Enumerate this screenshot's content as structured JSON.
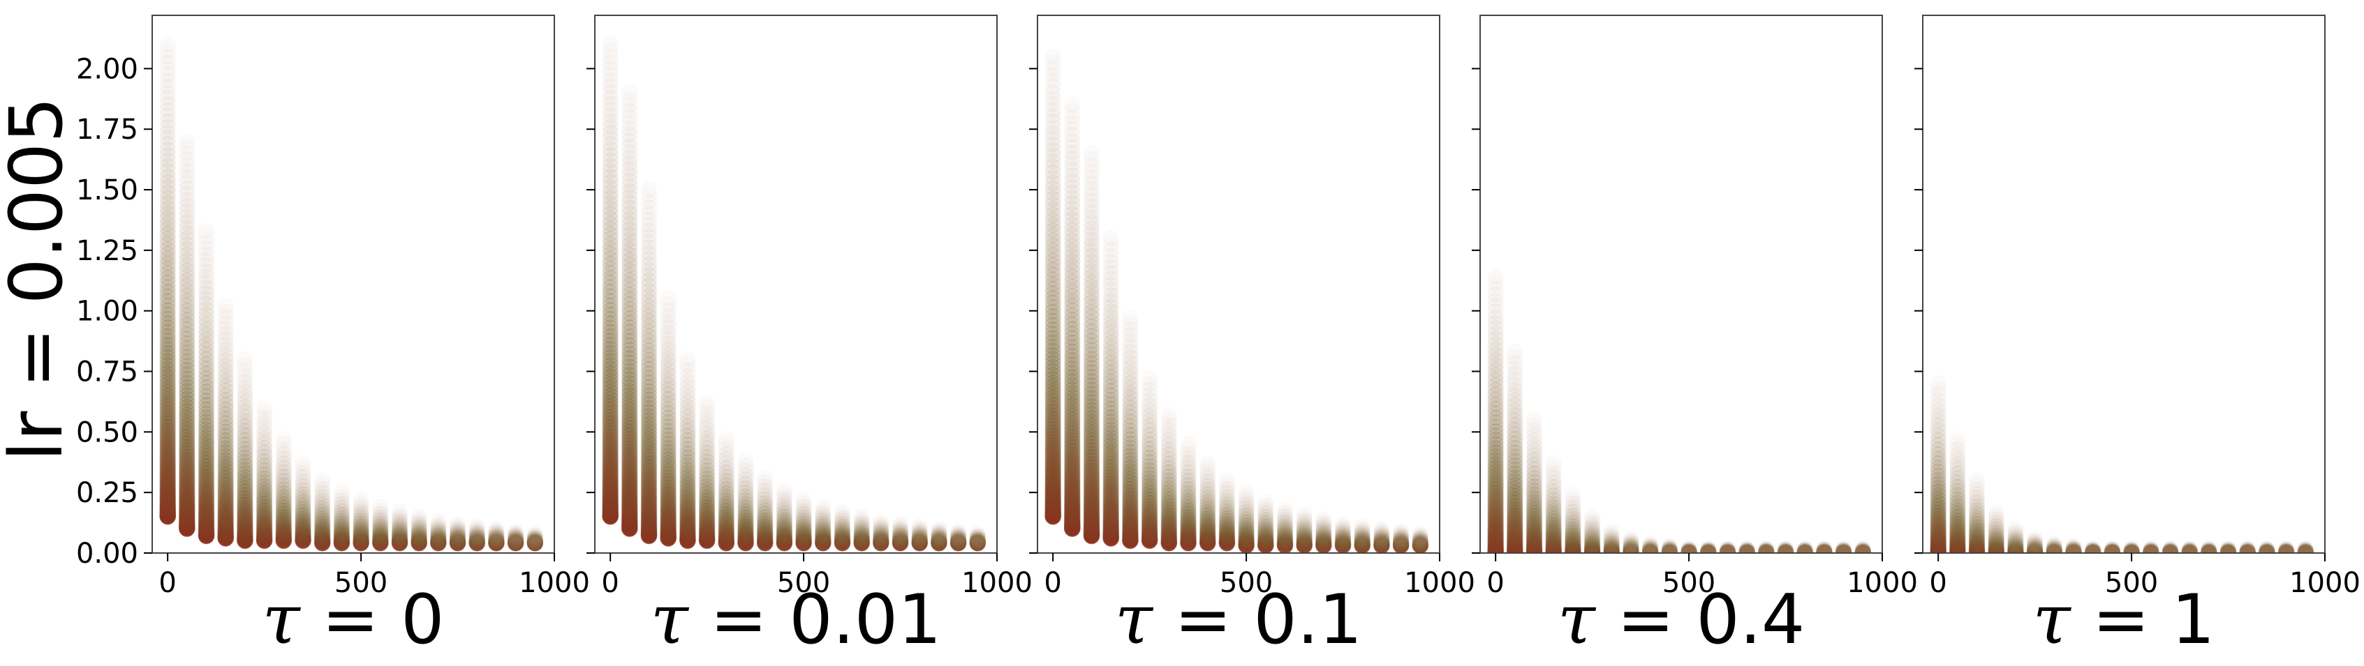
{
  "figure": {
    "row_label": "lr = 0.005",
    "y_ticks": [
      0.0,
      0.25,
      0.5,
      0.75,
      1.0,
      1.25,
      1.5,
      1.75,
      2.0
    ],
    "y_tick_labels": [
      "0.00",
      "0.25",
      "0.50",
      "0.75",
      "1.00",
      "1.25",
      "1.50",
      "1.75",
      "2.00"
    ],
    "x_ticks": [
      0,
      500,
      1000
    ],
    "x_tick_labels": [
      "0",
      "500",
      "1000"
    ],
    "colors": {
      "point_low": "#8b2a1a",
      "point_mid": "#7a6a3a",
      "point_high": "#c9a89a",
      "axes": "#444444"
    }
  },
  "chart_data": [
    {
      "type": "scatter",
      "title": "",
      "xlabel": "τ = 0",
      "ylabel": "lr = 0.005",
      "xlim": [
        -40,
        1000
      ],
      "ylim": [
        0,
        2.22
      ],
      "grid": false,
      "x": [
        0,
        50,
        100,
        150,
        200,
        250,
        300,
        350,
        400,
        450,
        500,
        550,
        600,
        650,
        700,
        750,
        800,
        850,
        900,
        950
      ],
      "y_min": [
        0.15,
        0.1,
        0.07,
        0.06,
        0.05,
        0.05,
        0.05,
        0.05,
        0.04,
        0.04,
        0.04,
        0.04,
        0.04,
        0.04,
        0.04,
        0.04,
        0.04,
        0.04,
        0.04,
        0.04
      ],
      "y_max": [
        2.1,
        1.7,
        1.33,
        1.02,
        0.8,
        0.6,
        0.47,
        0.37,
        0.3,
        0.25,
        0.22,
        0.19,
        0.17,
        0.15,
        0.13,
        0.12,
        0.11,
        0.1,
        0.09,
        0.08
      ]
    },
    {
      "type": "scatter",
      "title": "",
      "xlabel": "τ = 0.01",
      "ylabel": "",
      "xlim": [
        -40,
        1000
      ],
      "ylim": [
        0,
        2.22
      ],
      "grid": false,
      "x": [
        0,
        50,
        100,
        150,
        200,
        250,
        300,
        350,
        400,
        450,
        500,
        550,
        600,
        650,
        700,
        750,
        800,
        850,
        900,
        950
      ],
      "y_min": [
        0.15,
        0.1,
        0.07,
        0.06,
        0.05,
        0.05,
        0.04,
        0.04,
        0.04,
        0.04,
        0.04,
        0.04,
        0.04,
        0.04,
        0.04,
        0.04,
        0.04,
        0.04,
        0.04,
        0.04
      ],
      "y_max": [
        2.1,
        1.9,
        1.5,
        1.05,
        0.8,
        0.62,
        0.47,
        0.38,
        0.31,
        0.26,
        0.22,
        0.19,
        0.17,
        0.15,
        0.13,
        0.12,
        0.11,
        0.1,
        0.09,
        0.08
      ]
    },
    {
      "type": "scatter",
      "title": "",
      "xlabel": "τ = 0.1",
      "ylabel": "",
      "xlim": [
        -40,
        1000
      ],
      "ylim": [
        0,
        2.22
      ],
      "grid": false,
      "x": [
        0,
        50,
        100,
        150,
        200,
        250,
        300,
        350,
        400,
        450,
        500,
        550,
        600,
        650,
        700,
        750,
        800,
        850,
        900,
        950
      ],
      "y_min": [
        0.15,
        0.1,
        0.07,
        0.06,
        0.05,
        0.05,
        0.04,
        0.04,
        0.04,
        0.04,
        0.03,
        0.03,
        0.03,
        0.03,
        0.03,
        0.03,
        0.03,
        0.03,
        0.03,
        0.03
      ],
      "y_max": [
        2.05,
        1.85,
        1.65,
        1.3,
        0.97,
        0.72,
        0.57,
        0.45,
        0.37,
        0.3,
        0.25,
        0.21,
        0.18,
        0.16,
        0.14,
        0.12,
        0.11,
        0.1,
        0.09,
        0.08
      ]
    },
    {
      "type": "scatter",
      "title": "",
      "xlabel": "τ = 0.4",
      "ylabel": "",
      "xlim": [
        -40,
        1000
      ],
      "ylim": [
        0,
        2.22
      ],
      "grid": false,
      "x": [
        0,
        50,
        100,
        150,
        200,
        250,
        300,
        350,
        400,
        450,
        500,
        550,
        600,
        650,
        700,
        750,
        800,
        850,
        900,
        950
      ],
      "y_min": [
        0.0,
        0.0,
        0.0,
        0.0,
        0.0,
        0.0,
        0.0,
        0.0,
        0.0,
        0.0,
        0.0,
        0.0,
        0.0,
        0.0,
        0.0,
        0.0,
        0.0,
        0.0,
        0.0,
        0.0
      ],
      "y_max": [
        1.14,
        0.83,
        0.55,
        0.37,
        0.24,
        0.15,
        0.09,
        0.06,
        0.04,
        0.03,
        0.02,
        0.02,
        0.02,
        0.02,
        0.02,
        0.02,
        0.02,
        0.02,
        0.02,
        0.02
      ]
    },
    {
      "type": "scatter",
      "title": "",
      "xlabel": "τ = 1",
      "ylabel": "",
      "xlim": [
        -40,
        1000
      ],
      "ylim": [
        0,
        2.22
      ],
      "grid": false,
      "x": [
        0,
        50,
        100,
        150,
        200,
        250,
        300,
        350,
        400,
        450,
        500,
        550,
        600,
        650,
        700,
        750,
        800,
        850,
        900,
        950
      ],
      "y_min": [
        0.0,
        0.0,
        0.0,
        0.0,
        0.0,
        0.0,
        0.0,
        0.0,
        0.0,
        0.0,
        0.0,
        0.0,
        0.0,
        0.0,
        0.0,
        0.0,
        0.0,
        0.0,
        0.0,
        0.0
      ],
      "y_max": [
        0.7,
        0.47,
        0.3,
        0.17,
        0.1,
        0.06,
        0.04,
        0.03,
        0.02,
        0.02,
        0.02,
        0.02,
        0.02,
        0.02,
        0.02,
        0.02,
        0.02,
        0.02,
        0.02,
        0.02
      ]
    }
  ]
}
